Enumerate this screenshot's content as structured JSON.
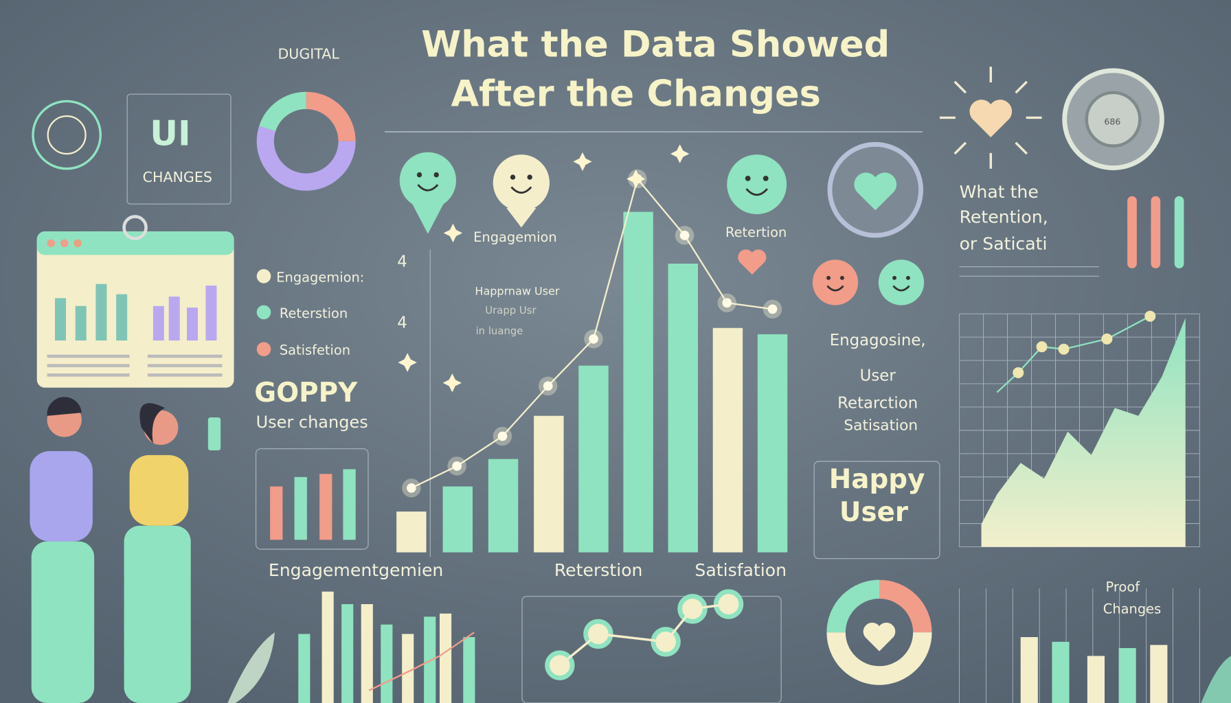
{
  "header": {
    "title_lines": [
      "What the Data Showed",
      "After the Changes"
    ],
    "tag": "DUGITAL"
  },
  "left_panel": {
    "ui": "UI",
    "changes": "CHANGES",
    "legend": [
      "Engagemion:",
      "Reterstion",
      "Satisfetion"
    ],
    "headline": "GOPPY",
    "subline": "User changes"
  },
  "center_chart": {
    "labels": [
      "Engagemion",
      "Retertion"
    ],
    "axis_marks": [
      "4",
      "4"
    ],
    "note_lines": [
      "Happrnaw User",
      "Urapp Usr",
      "in luange"
    ]
  },
  "right_panel": {
    "heading_lines": [
      "What the",
      "Retention,",
      "or Saticati"
    ],
    "list_lines": [
      "Engagosine,",
      "User",
      "Retarction",
      "Satisation"
    ],
    "happy_lines": [
      "Happy",
      "User"
    ],
    "badge": "686",
    "proof_lines": [
      "Proof",
      "Changes"
    ]
  },
  "bottom_legend": [
    "Engagementgemien",
    "Reterstion",
    "Satisfation"
  ]
}
